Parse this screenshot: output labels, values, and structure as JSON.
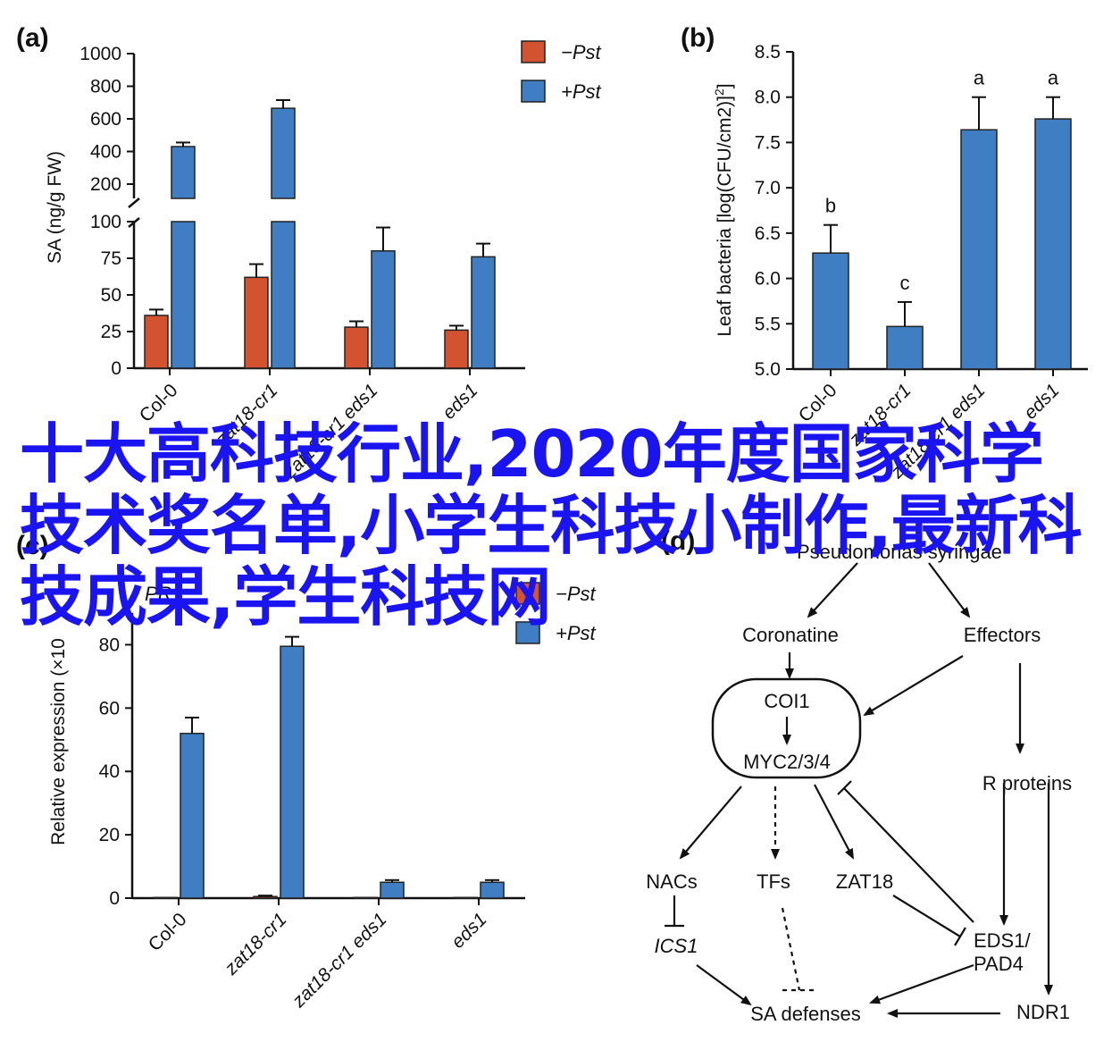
{
  "overlay_title": "十大高科技行业,2020年度国家科学技术奖名单,小学生科技小制作,最新科技成果,学生科技网",
  "colors": {
    "minus": "#d35230",
    "plus": "#3f7ec2",
    "overlay": "#1a14f0",
    "axis": "#111111"
  },
  "chart_data": [
    {
      "panel": "(a)",
      "type": "bar",
      "ylabel": "SA (ng/g FW)",
      "broken_axis": true,
      "ylim_lower": [
        0,
        100
      ],
      "ylim_upper": [
        100,
        1000
      ],
      "yticks_lower": [
        0,
        25,
        50,
        75,
        100
      ],
      "yticks_upper": [
        200,
        400,
        600,
        800,
        1000
      ],
      "categories": [
        "Col-0",
        "zat18-cr1",
        "zat18-cr1 eds1",
        "eds1"
      ],
      "series": [
        {
          "name": "−Pst",
          "color": "#d35230",
          "values": [
            36,
            62,
            28,
            26
          ],
          "errors": [
            4,
            9,
            4,
            3
          ]
        },
        {
          "name": "+Pst",
          "color": "#3f7ec2",
          "values": [
            430,
            665,
            80,
            76
          ],
          "errors": [
            25,
            50,
            16,
            9
          ]
        }
      ],
      "legend": "top-right"
    },
    {
      "panel": "(b)",
      "type": "bar",
      "ylabel": "Leaf bacteria [log(CFU/cm2)]",
      "ylim": [
        5.0,
        8.5
      ],
      "yticks": [
        "5.0",
        "5.5",
        "6.0",
        "6.5",
        "7.0",
        "7.5",
        "8.0",
        "8.5"
      ],
      "categories": [
        "Col-0",
        "zat18-cr1",
        "zat18-cr1 eds1",
        "eds1"
      ],
      "series": [
        {
          "color": "#3f7ec2",
          "values": [
            6.28,
            5.47,
            7.64,
            7.76
          ],
          "errors": [
            0.31,
            0.27,
            0.36,
            0.24
          ]
        }
      ],
      "significance": [
        "b",
        "c",
        "a",
        "a"
      ]
    },
    {
      "panel": "(c)",
      "type": "bar",
      "title": "PR1",
      "ylabel": "Relative expression (×10",
      "ylim": [
        0,
        90
      ],
      "yticks": [
        0,
        20,
        40,
        60,
        80
      ],
      "categories": [
        "Col-0",
        "zat18-cr1",
        "zat18-cr1 eds1",
        "eds1"
      ],
      "series": [
        {
          "name": "−Pst",
          "color": "#d35230",
          "values": [
            0.2,
            0.5,
            0.2,
            0.2
          ],
          "errors": [
            0,
            0.3,
            0,
            0
          ]
        },
        {
          "name": "+Pst",
          "color": "#3f7ec2",
          "values": [
            52,
            79.5,
            5,
            5
          ],
          "errors": [
            5,
            3,
            0.7,
            0.7
          ]
        }
      ],
      "legend": "top-right"
    }
  ],
  "diagram_d": {
    "panel": "(d)",
    "nodes": {
      "pathogen": "Pseudomonas syringae",
      "coronatine": "Coronatine",
      "effectors": "Effectors",
      "coi1": "COI1",
      "myc": "MYC2/3/4",
      "rproteins": "R proteins",
      "nacs": "NACs",
      "tfs": "TFs",
      "zat18": "ZAT18",
      "ics1": "ICS1",
      "eds1": "EDS1/",
      "pad4": "PAD4",
      "sa": "SA defenses",
      "ndr1": "NDR1"
    }
  }
}
